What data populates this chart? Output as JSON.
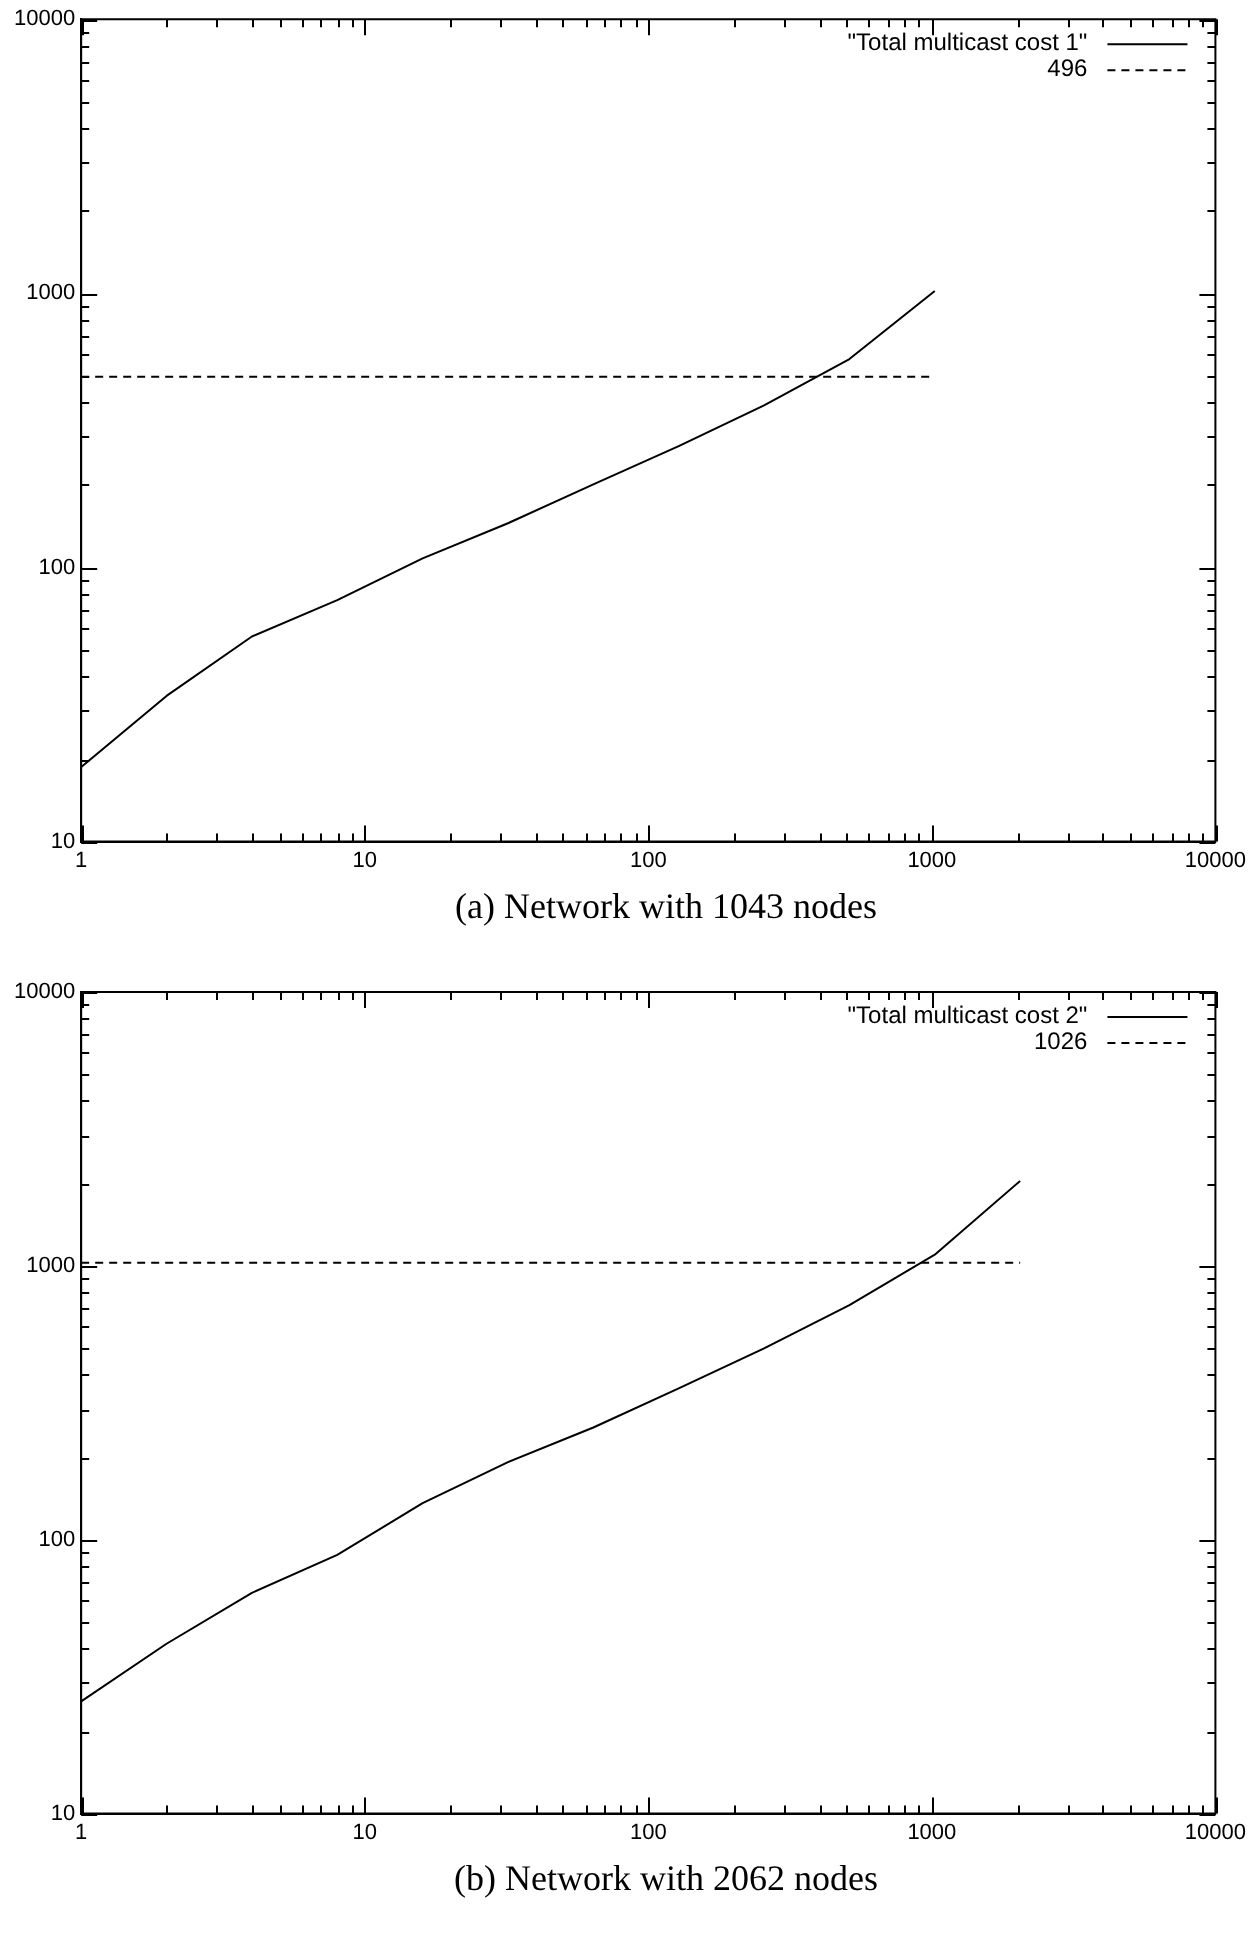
{
  "chart_data": [
    {
      "type": "line",
      "log": "xy",
      "xlim": [
        1,
        10000
      ],
      "ylim": [
        10,
        10000
      ],
      "xticks": [
        1,
        {
          "value": 2,
          "label": null
        },
        {
          "value": 3,
          "label": null
        },
        {
          "value": 4,
          "label": null
        },
        {
          "value": 5,
          "label": null
        },
        {
          "value": 6,
          "label": null
        },
        {
          "value": 7,
          "label": null
        },
        {
          "value": 8,
          "label": null
        },
        {
          "value": 9,
          "label": null
        },
        10,
        {
          "value": 20,
          "label": null
        },
        {
          "value": 30,
          "label": null
        },
        {
          "value": 40,
          "label": null
        },
        {
          "value": 50,
          "label": null
        },
        {
          "value": 60,
          "label": null
        },
        {
          "value": 70,
          "label": null
        },
        {
          "value": 80,
          "label": null
        },
        {
          "value": 90,
          "label": null
        },
        100,
        {
          "value": 200,
          "label": null
        },
        {
          "value": 300,
          "label": null
        },
        {
          "value": 400,
          "label": null
        },
        {
          "value": 500,
          "label": null
        },
        {
          "value": 600,
          "label": null
        },
        {
          "value": 700,
          "label": null
        },
        {
          "value": 800,
          "label": null
        },
        {
          "value": 900,
          "label": null
        },
        1000,
        {
          "value": 2000,
          "label": null
        },
        {
          "value": 3000,
          "label": null
        },
        {
          "value": 4000,
          "label": null
        },
        {
          "value": 5000,
          "label": null
        },
        {
          "value": 6000,
          "label": null
        },
        {
          "value": 7000,
          "label": null
        },
        {
          "value": 8000,
          "label": null
        },
        {
          "value": 9000,
          "label": null
        },
        10000
      ],
      "yticks": [
        10,
        {
          "value": 20,
          "label": null
        },
        {
          "value": 30,
          "label": null
        },
        {
          "value": 40,
          "label": null
        },
        {
          "value": 50,
          "label": null
        },
        {
          "value": 60,
          "label": null
        },
        {
          "value": 70,
          "label": null
        },
        {
          "value": 80,
          "label": null
        },
        {
          "value": 90,
          "label": null
        },
        100,
        {
          "value": 200,
          "label": null
        },
        {
          "value": 300,
          "label": null
        },
        {
          "value": 400,
          "label": null
        },
        {
          "value": 500,
          "label": null
        },
        {
          "value": 600,
          "label": null
        },
        {
          "value": 700,
          "label": null
        },
        {
          "value": 800,
          "label": null
        },
        {
          "value": 900,
          "label": null
        },
        1000,
        {
          "value": 2000,
          "label": null
        },
        {
          "value": 3000,
          "label": null
        },
        {
          "value": 4000,
          "label": null
        },
        {
          "value": 5000,
          "label": null
        },
        {
          "value": 6000,
          "label": null
        },
        {
          "value": 7000,
          "label": null
        },
        {
          "value": 8000,
          "label": null
        },
        {
          "value": 9000,
          "label": null
        },
        10000
      ],
      "grid": false,
      "legend": "top right",
      "marker": "none",
      "series": [
        {
          "name": "\"Total multicast cost 1\"",
          "color": "#000000",
          "line_style": "solid",
          "x": [
            1,
            2,
            4,
            8,
            16,
            32,
            64,
            128,
            256,
            512,
            1024
          ],
          "values": [
            18.7,
            34,
            56,
            76,
            108,
            145,
            201,
            277,
            390,
            576,
            1020
          ]
        },
        {
          "name": "496",
          "color": "#000000",
          "line_style": "dashed",
          "x": [
            1,
            1024
          ],
          "values": [
            496,
            496
          ]
        }
      ],
      "annotations": [
        "(a)  Network with 1043 nodes"
      ]
    },
    {
      "type": "line",
      "log": "xy",
      "xlim": [
        1,
        10000
      ],
      "ylim": [
        10,
        10000
      ],
      "xticks": [
        1,
        {
          "value": 2,
          "label": null
        },
        {
          "value": 3,
          "label": null
        },
        {
          "value": 4,
          "label": null
        },
        {
          "value": 5,
          "label": null
        },
        {
          "value": 6,
          "label": null
        },
        {
          "value": 7,
          "label": null
        },
        {
          "value": 8,
          "label": null
        },
        {
          "value": 9,
          "label": null
        },
        10,
        {
          "value": 20,
          "label": null
        },
        {
          "value": 30,
          "label": null
        },
        {
          "value": 40,
          "label": null
        },
        {
          "value": 50,
          "label": null
        },
        {
          "value": 60,
          "label": null
        },
        {
          "value": 70,
          "label": null
        },
        {
          "value": 80,
          "label": null
        },
        {
          "value": 90,
          "label": null
        },
        100,
        {
          "value": 200,
          "label": null
        },
        {
          "value": 300,
          "label": null
        },
        {
          "value": 400,
          "label": null
        },
        {
          "value": 500,
          "label": null
        },
        {
          "value": 600,
          "label": null
        },
        {
          "value": 700,
          "label": null
        },
        {
          "value": 800,
          "label": null
        },
        {
          "value": 900,
          "label": null
        },
        1000,
        {
          "value": 2000,
          "label": null
        },
        {
          "value": 3000,
          "label": null
        },
        {
          "value": 4000,
          "label": null
        },
        {
          "value": 5000,
          "label": null
        },
        {
          "value": 6000,
          "label": null
        },
        {
          "value": 7000,
          "label": null
        },
        {
          "value": 8000,
          "label": null
        },
        {
          "value": 9000,
          "label": null
        },
        10000
      ],
      "yticks": [
        10,
        {
          "value": 20,
          "label": null
        },
        {
          "value": 30,
          "label": null
        },
        {
          "value": 40,
          "label": null
        },
        {
          "value": 50,
          "label": null
        },
        {
          "value": 60,
          "label": null
        },
        {
          "value": 70,
          "label": null
        },
        {
          "value": 80,
          "label": null
        },
        {
          "value": 90,
          "label": null
        },
        100,
        {
          "value": 200,
          "label": null
        },
        {
          "value": 300,
          "label": null
        },
        {
          "value": 400,
          "label": null
        },
        {
          "value": 500,
          "label": null
        },
        {
          "value": 600,
          "label": null
        },
        {
          "value": 700,
          "label": null
        },
        {
          "value": 800,
          "label": null
        },
        {
          "value": 900,
          "label": null
        },
        1000,
        {
          "value": 2000,
          "label": null
        },
        {
          "value": 3000,
          "label": null
        },
        {
          "value": 4000,
          "label": null
        },
        {
          "value": 5000,
          "label": null
        },
        {
          "value": 6000,
          "label": null
        },
        {
          "value": 7000,
          "label": null
        },
        {
          "value": 8000,
          "label": null
        },
        {
          "value": 9000,
          "label": null
        },
        10000
      ],
      "grid": false,
      "legend": "top right",
      "marker": "none",
      "series": [
        {
          "name": "\"Total multicast cost 2\"",
          "color": "#000000",
          "line_style": "solid",
          "x": [
            1,
            2,
            4,
            8,
            16,
            32,
            64,
            128,
            256,
            512,
            1024,
            2048
          ],
          "values": [
            25.7,
            41.7,
            64,
            88,
            136,
            192,
            257,
            357,
            500,
            719,
            1099,
            2042
          ]
        },
        {
          "name": "1026",
          "color": "#000000",
          "line_style": "dashed",
          "x": [
            1,
            2048
          ],
          "values": [
            1026,
            1026
          ]
        }
      ],
      "annotations": [
        "(b)  Network with 2062 nodes"
      ]
    }
  ]
}
